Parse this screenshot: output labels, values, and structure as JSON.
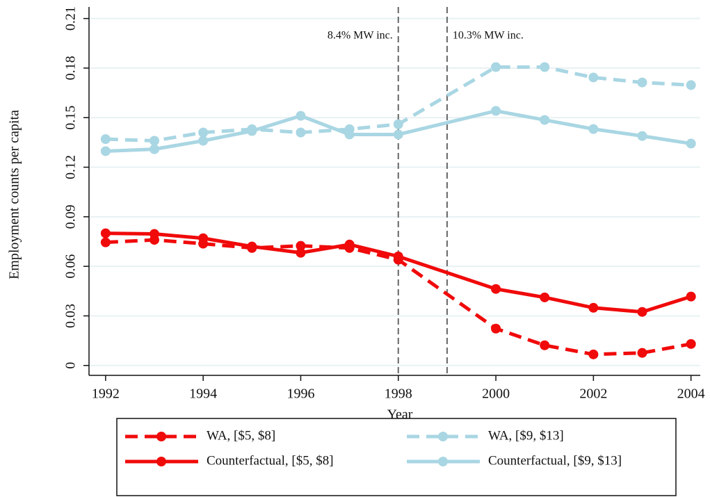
{
  "chart_data": {
    "type": "line",
    "xlabel": "Year",
    "ylabel": "Employment counts per capita",
    "x": [
      1992,
      1993,
      1994,
      1995,
      1996,
      1997,
      1998,
      2000,
      2001,
      2002,
      2003,
      2004
    ],
    "series": [
      {
        "name": "WA, [$5, $8]",
        "color": "#f00a0a",
        "style": "dashed",
        "values": [
          0.0745,
          0.076,
          0.0737,
          0.0711,
          0.0724,
          0.0711,
          0.064,
          0.0223,
          0.0122,
          0.0067,
          0.0076,
          0.013
        ]
      },
      {
        "name": "Counterfactual, [$5, $8]",
        "color": "#f00a0a",
        "style": "solid",
        "values": [
          0.08,
          0.0796,
          0.077,
          0.072,
          0.0682,
          0.0732,
          0.066,
          0.0463,
          0.0412,
          0.0349,
          0.0324,
          0.0417
        ]
      },
      {
        "name": "WA, [$9, $13]",
        "color": "#a9d6e3",
        "style": "dashed",
        "values": [
          0.137,
          0.136,
          0.141,
          0.143,
          0.141,
          0.143,
          0.146,
          0.1806,
          0.1806,
          0.1743,
          0.1713,
          0.1697
        ]
      },
      {
        "name": "Counterfactual, [$9, $13]",
        "color": "#a9d6e3",
        "style": "solid",
        "values": [
          0.1297,
          0.1309,
          0.136,
          0.1419,
          0.1511,
          0.1398,
          0.1398,
          0.1541,
          0.1486,
          0.1431,
          0.1389,
          0.1343
        ]
      }
    ],
    "annotations": [
      {
        "x": 1998,
        "text": "8.4% MW inc."
      },
      {
        "x": 1999,
        "text": "10.3% MW inc."
      }
    ],
    "xlim": [
      1991.66,
      2004.19
    ],
    "xticks": [
      1992,
      1994,
      1996,
      1998,
      2000,
      2002,
      2004
    ],
    "ylim": [
      -0.006,
      0.217
    ],
    "yticks": [
      0,
      0.03,
      0.06,
      0.09,
      0.12,
      0.15,
      0.18,
      0.21
    ],
    "grid": true,
    "legend": "bottom"
  }
}
